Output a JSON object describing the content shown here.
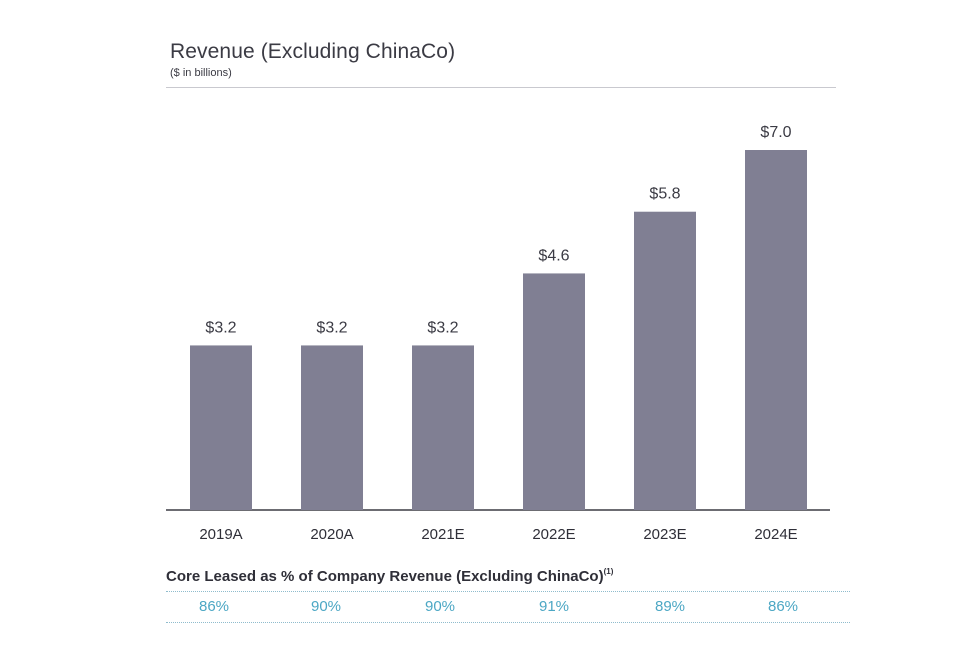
{
  "chart_data": {
    "type": "bar",
    "title": "Revenue (Excluding ChinaCo)",
    "subtitle": "($ in billions)",
    "categories": [
      "2019A",
      "2020A",
      "2021E",
      "2022E",
      "2023E",
      "2024E"
    ],
    "values": [
      3.2,
      3.2,
      3.2,
      4.6,
      5.8,
      7.0
    ],
    "value_labels": [
      "$3.2",
      "$3.2",
      "$3.2",
      "$4.6",
      "$5.8",
      "$7.0"
    ],
    "ylim": [
      0,
      7.0
    ],
    "bar_color": "#807f93",
    "grid": false,
    "legend": "none"
  },
  "footer": {
    "title": "Core Leased as % of Company Revenue (Excluding ChinaCo)",
    "footnote_marker": "(1)",
    "values": [
      "86%",
      "90%",
      "90%",
      "91%",
      "89%",
      "86%"
    ],
    "value_color": "#4ca7c4"
  }
}
